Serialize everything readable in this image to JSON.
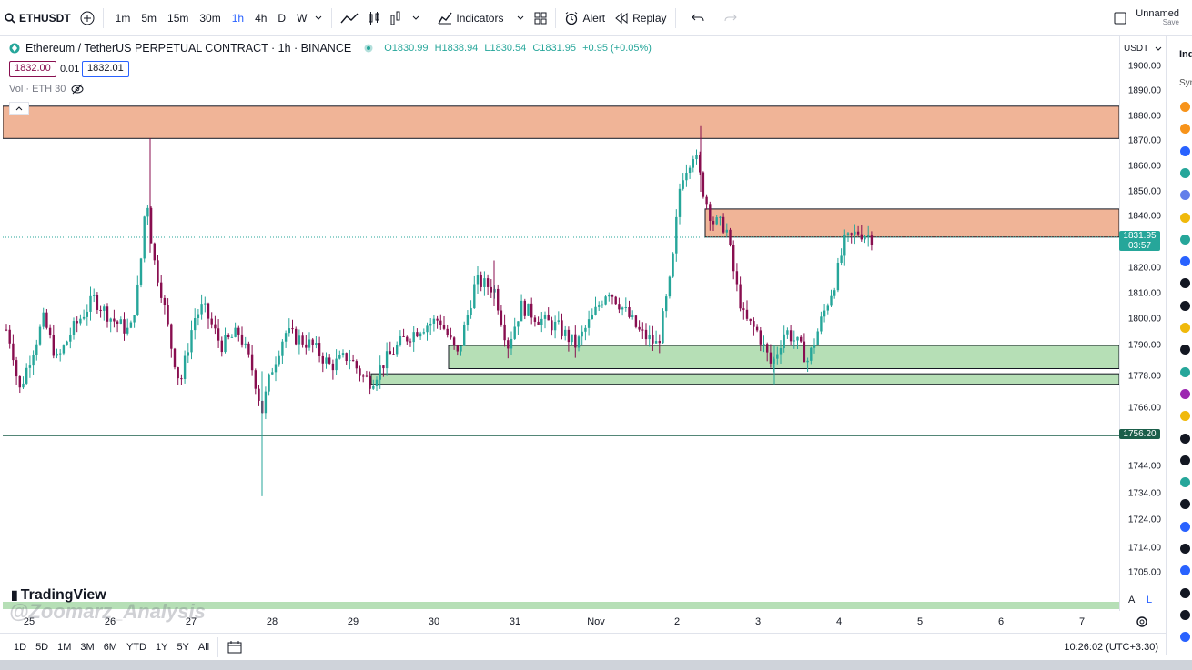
{
  "topbar": {
    "symbol": "ETHUSDT",
    "intervals": [
      "1m",
      "5m",
      "15m",
      "30m",
      "1h",
      "4h",
      "D",
      "W"
    ],
    "active_interval": "1h",
    "indicators_label": "Indicators",
    "alert_label": "Alert",
    "replay_label": "Replay",
    "layout_name": "Unnamed",
    "layout_status": "Save"
  },
  "legend": {
    "title": "Ethereum / TetherUS PERPETUAL CONTRACT · 1h · BINANCE",
    "open": "O1830.99",
    "high": "H1838.94",
    "low": "L1830.54",
    "close": "C1831.95",
    "change": "+0.95 (+0.05%)",
    "bid": "1832.00",
    "spread": "0.01",
    "ask": "1832.01",
    "volume_label": "Vol · ETH 30"
  },
  "price_axis": {
    "currency": "USDT",
    "ticks": [
      "1900.00",
      "1890.00",
      "1880.00",
      "1870.00",
      "1860.00",
      "1850.00",
      "1840.00",
      "1820.00",
      "1810.00",
      "1800.00",
      "1790.00",
      "1778.00",
      "1766.00",
      "1756.20",
      "1744.00",
      "1734.00",
      "1724.00",
      "1714.00",
      "1705.00"
    ],
    "last_price": "1831.95",
    "countdown": "03:57",
    "line_price": "1756.20"
  },
  "time_axis": {
    "labels": [
      "25",
      "26",
      "27",
      "28",
      "29",
      "30",
      "31",
      "Nov",
      "2",
      "3",
      "4",
      "5",
      "6",
      "7"
    ]
  },
  "bottombar": {
    "ranges": [
      "1D",
      "5D",
      "1M",
      "3M",
      "6M",
      "YTD",
      "1Y",
      "5Y",
      "All"
    ],
    "clock": "10:26:02 (UTC+3:30)",
    "scale_auto": "A",
    "scale_log": "L"
  },
  "brand": {
    "logo": "TradingView",
    "watermark": "@Zoomarz_Analysis"
  },
  "sidebar": {
    "header": "Ind",
    "sub": "Syn"
  },
  "colors": {
    "up": "#26a69a",
    "down": "#880e4f",
    "supply_zone": "#f0b497",
    "demand_zone": "#b6dfb6",
    "accent": "#2962ff"
  },
  "chart_data": {
    "type": "candlestick",
    "symbol": "ETHUSDT",
    "ylim": [
      1700,
      1905
    ],
    "zones": [
      {
        "kind": "supply",
        "low": 1871,
        "high": 1884
      },
      {
        "kind": "supply",
        "low": 1832,
        "high": 1843
      },
      {
        "kind": "demand",
        "low": 1781,
        "high": 1790
      },
      {
        "kind": "demand",
        "low": 1775,
        "high": 1779
      }
    ],
    "horizontal_line": 1756.2,
    "last": 1831.95
  }
}
